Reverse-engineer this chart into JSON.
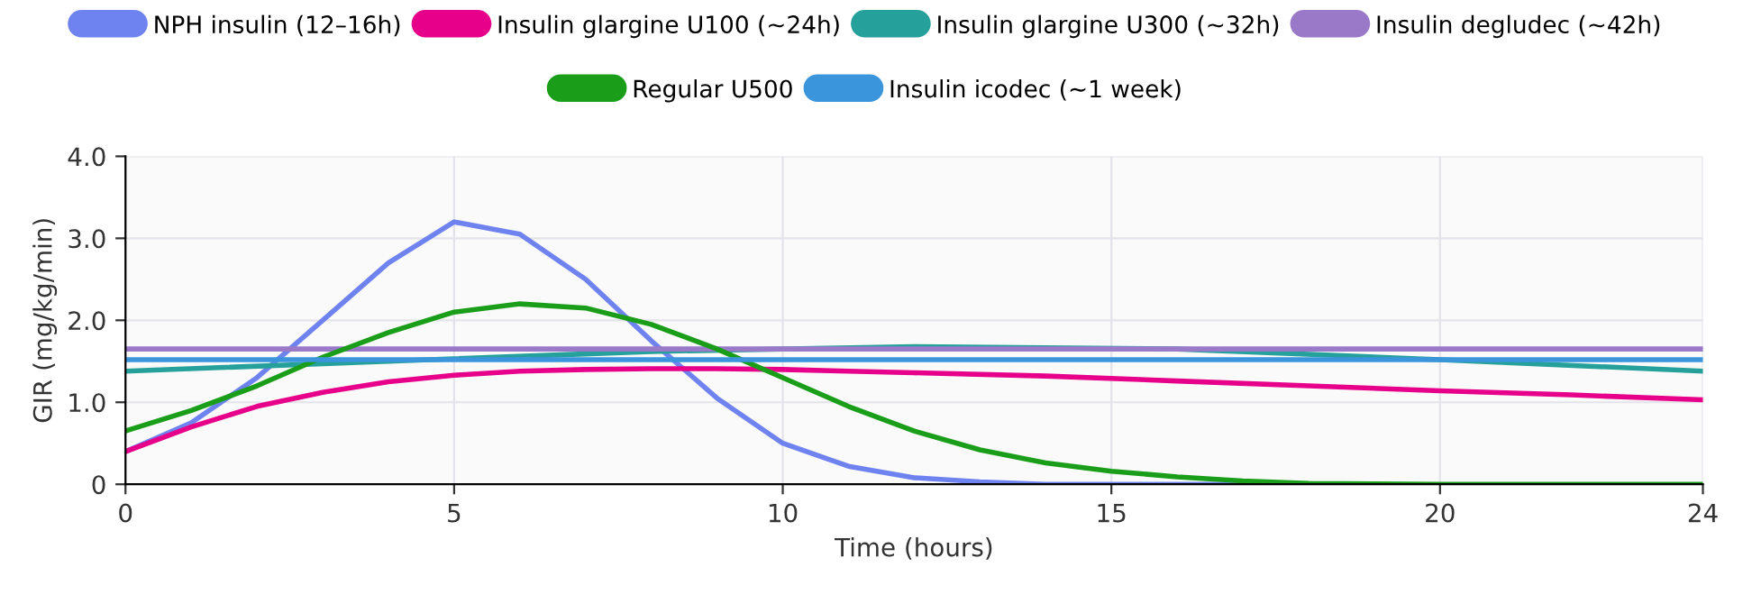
{
  "chart_data": {
    "type": "line",
    "xlabel": "Time (hours)",
    "ylabel": "GIR (mg/kg/min)",
    "xlim": [
      0,
      24
    ],
    "xticks": [
      0,
      5,
      10,
      15,
      20,
      24
    ],
    "ylim": [
      0,
      4
    ],
    "yticks": [
      0,
      {
        "value": 1,
        "label": "1.0"
      },
      {
        "value": 2,
        "label": "2.0"
      },
      {
        "value": 3,
        "label": "3.0"
      },
      {
        "value": 4,
        "label": "4.0"
      }
    ],
    "grid": true,
    "legend": "top",
    "marker": "none",
    "line_style": "solid",
    "series": [
      {
        "name": "NPH insulin (12–16h)",
        "color": "#6f83f0",
        "x": [
          0,
          1,
          2,
          3,
          4,
          5,
          6,
          7,
          8,
          9,
          10,
          11,
          12,
          13,
          14,
          16,
          18
        ],
        "values": [
          0.4,
          0.75,
          1.3,
          2.0,
          2.7,
          3.2,
          3.05,
          2.5,
          1.75,
          1.05,
          0.5,
          0.22,
          0.08,
          0.03,
          0,
          0,
          0
        ]
      },
      {
        "name": "Insulin glargine U100 (~24h)",
        "color": "#e6008a",
        "x": [
          0,
          1,
          2,
          3,
          4,
          5,
          6,
          7,
          8,
          9,
          10,
          11,
          12,
          14,
          16,
          18,
          20,
          22,
          24
        ],
        "values": [
          0.4,
          0.7,
          0.95,
          1.12,
          1.25,
          1.33,
          1.38,
          1.4,
          1.41,
          1.41,
          1.4,
          1.38,
          1.36,
          1.32,
          1.26,
          1.2,
          1.14,
          1.09,
          1.03
        ]
      },
      {
        "name": "Insulin glargine U300 (~32h)",
        "color": "#26a09a",
        "x": [
          0,
          4,
          8,
          12,
          16,
          20,
          24
        ],
        "values": [
          1.38,
          1.5,
          1.62,
          1.68,
          1.65,
          1.52,
          1.38
        ]
      },
      {
        "name": "Insulin degludec (~42h)",
        "color": "#9a79c9",
        "x": [
          0,
          24
        ],
        "values": [
          1.65,
          1.65
        ]
      },
      {
        "name": "Regular U500",
        "color": "#1a9e1a",
        "x": [
          0,
          1,
          2,
          3,
          4,
          5,
          6,
          7,
          8,
          9,
          10,
          11,
          12,
          13,
          14,
          15,
          16,
          17,
          18,
          20,
          22,
          24
        ],
        "values": [
          0.65,
          0.9,
          1.2,
          1.55,
          1.85,
          2.1,
          2.2,
          2.15,
          1.95,
          1.65,
          1.3,
          0.95,
          0.65,
          0.42,
          0.26,
          0.16,
          0.09,
          0.04,
          0.01,
          0,
          0,
          0
        ]
      },
      {
        "name": "Insulin icodec (~1 week)",
        "color": "#3b95dd",
        "x": [
          0,
          24
        ],
        "values": [
          1.52,
          1.52
        ]
      }
    ]
  }
}
